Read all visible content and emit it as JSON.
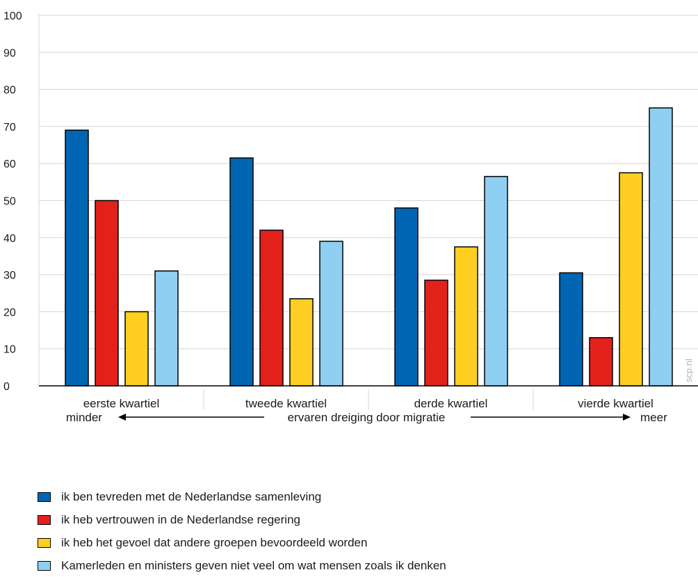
{
  "chart_data": {
    "type": "bar",
    "categories": [
      "eerste kwartiel",
      "tweede kwartiel",
      "derde kwartiel",
      "vierde kwartiel"
    ],
    "series": [
      {
        "name": "ik ben tevreden met de Nederlandse samenleving",
        "color": "#0066b3",
        "values": [
          69,
          61.5,
          48,
          30.5
        ]
      },
      {
        "name": "ik heb vertrouwen in de Nederlandse regering",
        "color": "#e3211b",
        "values": [
          50,
          42,
          28.5,
          13
        ]
      },
      {
        "name": "ik heb het gevoel dat andere groepen bevoordeeld worden",
        "color": "#fecf21",
        "values": [
          20,
          23.5,
          37.5,
          57.5
        ]
      },
      {
        "name": "Kamerleden en ministers geven niet veel om wat mensen zoals ik denken",
        "color": "#8ecff2",
        "values": [
          31,
          39,
          56.5,
          75
        ]
      }
    ],
    "ylim": [
      0,
      100
    ],
    "yticks": [
      0,
      10,
      20,
      30,
      40,
      50,
      60,
      70,
      80,
      90,
      100
    ],
    "grid": true,
    "legend_position": "bottom",
    "axis_annotation": {
      "left": "minder",
      "center": "ervaren dreiging door migratie",
      "right": "meer"
    },
    "watermark": "scp.nl"
  }
}
